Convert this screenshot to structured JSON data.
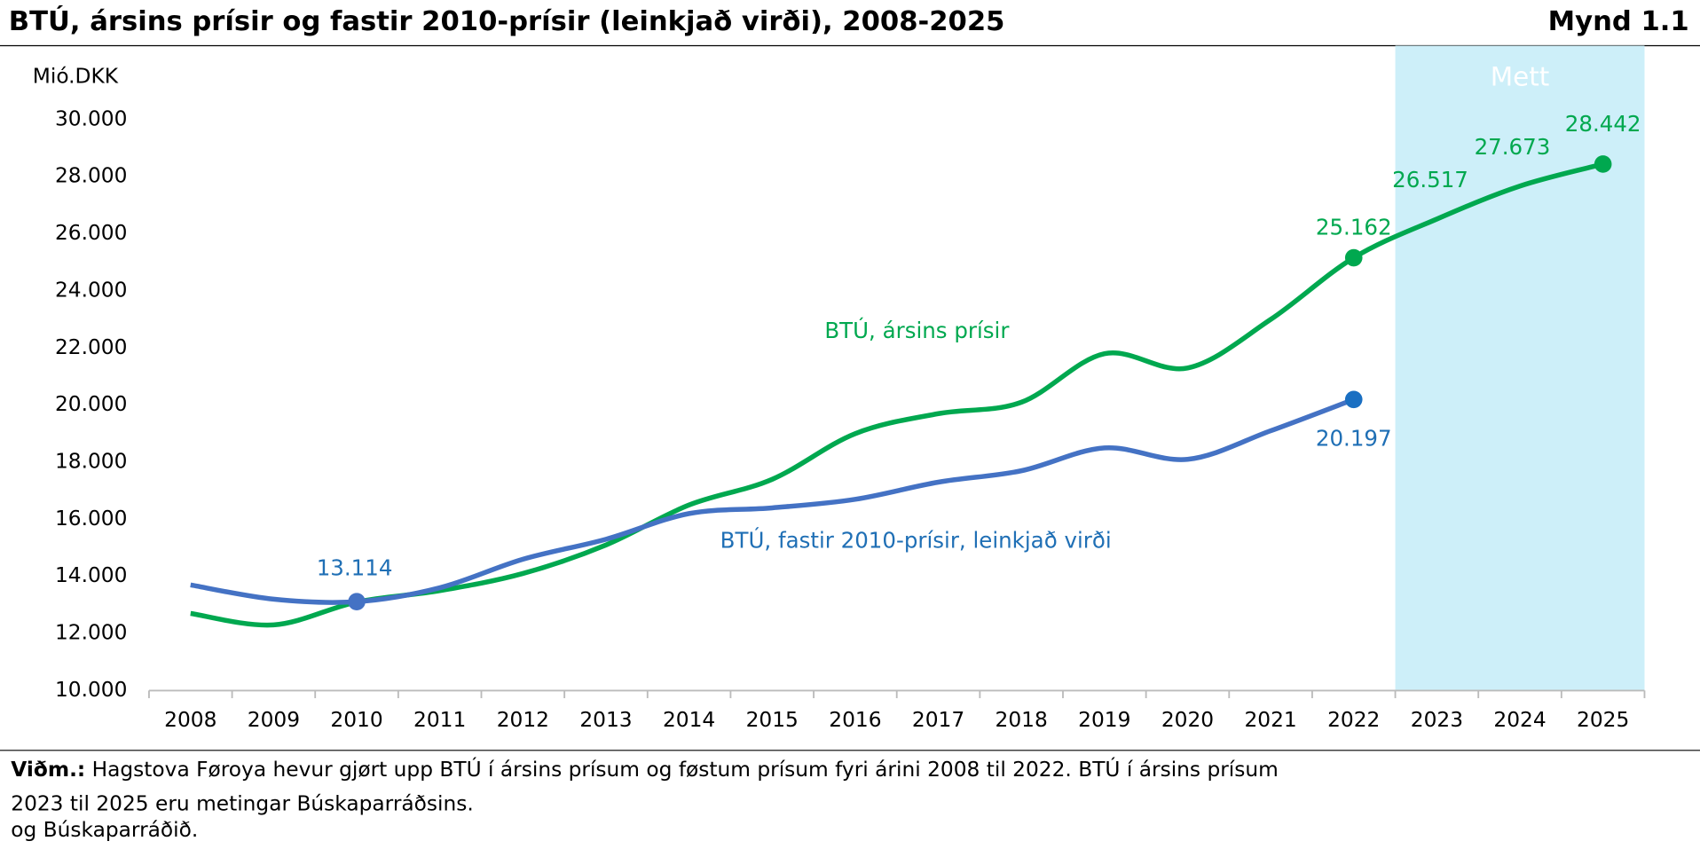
{
  "chart_data": {
    "type": "line",
    "title": "BTÚ, ársins prísir og fastir 2010-prísir (leinkjað virði), 2008-2025",
    "figure_label": "Mynd 1.1",
    "y_axis_label": "Mió.DKK",
    "categories": [
      "2008",
      "2009",
      "2010",
      "2011",
      "2012",
      "2013",
      "2014",
      "2015",
      "2016",
      "2017",
      "2018",
      "2019",
      "2020",
      "2021",
      "2022",
      "2023",
      "2024",
      "2025"
    ],
    "series": [
      {
        "name": "BTÚ, ársins prísir",
        "color": "#00a84f",
        "values": [
          12700,
          12300,
          13100,
          13500,
          14100,
          15100,
          16500,
          17400,
          19000,
          19700,
          20100,
          21800,
          21300,
          23000,
          25162,
          26517,
          27673,
          28442
        ],
        "value_labels": [
          null,
          null,
          null,
          null,
          null,
          null,
          null,
          null,
          null,
          null,
          null,
          null,
          null,
          null,
          "25.162",
          "26.517",
          "27.673",
          "28.442"
        ]
      },
      {
        "name": "BTÚ, fastir 2010-prísir, leinkjað virði",
        "color": "#4472c4",
        "values": [
          13700,
          13200,
          13114,
          13600,
          14600,
          15300,
          16200,
          16400,
          16700,
          17300,
          17700,
          18500,
          18100,
          19100,
          20197,
          null,
          null,
          null
        ],
        "value_labels": [
          null,
          null,
          "13.114",
          null,
          null,
          null,
          null,
          null,
          null,
          null,
          null,
          null,
          null,
          null,
          "20.197",
          null,
          null,
          null
        ]
      }
    ],
    "ylim": [
      10000,
      30000
    ],
    "yticks": [
      {
        "value": 10000,
        "label": "10.000"
      },
      {
        "value": 12000,
        "label": "12.000"
      },
      {
        "value": 14000,
        "label": "14.000"
      },
      {
        "value": 16000,
        "label": "16.000"
      },
      {
        "value": 18000,
        "label": "18.000"
      },
      {
        "value": 20000,
        "label": "20.000"
      },
      {
        "value": 22000,
        "label": "22.000"
      },
      {
        "value": 24000,
        "label": "24.000"
      },
      {
        "value": 26000,
        "label": "26.000"
      },
      {
        "value": 28000,
        "label": "28.000"
      },
      {
        "value": 30000,
        "label": "30.000"
      }
    ],
    "grid": false,
    "shaded_region": {
      "from": "2023",
      "to": "2025",
      "label": "Mett",
      "color": "#cdeff9"
    },
    "note": {
      "label": "Viðm.:",
      "lines": [
        "Hagstova Føroya hevur gjørt upp BTÚ í ársins prísum og føstum prísum fyri árini 2008 til 2022. BTÚ í ársins prísum",
        "2023 til 2025 eru metingar Búskaparráðsins.",
        "og Búskaparráðið."
      ]
    }
  }
}
